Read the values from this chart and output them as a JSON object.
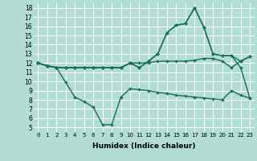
{
  "xlabel": "Humidex (Indice chaleur)",
  "xlim": [
    -0.5,
    23.5
  ],
  "ylim": [
    4.5,
    18.5
  ],
  "x_ticks": [
    0,
    1,
    2,
    3,
    4,
    5,
    6,
    7,
    8,
    9,
    10,
    11,
    12,
    13,
    14,
    15,
    16,
    17,
    18,
    19,
    20,
    21,
    22,
    23
  ],
  "y_ticks": [
    5,
    6,
    7,
    8,
    9,
    10,
    11,
    12,
    13,
    14,
    15,
    16,
    17,
    18
  ],
  "bg_color": "#b2ddd4",
  "grid_color": "#c8e8e0",
  "line_color": "#1a6b5a",
  "series": {
    "line1_x": [
      0,
      1,
      2,
      3,
      4,
      5,
      6,
      7,
      8,
      9,
      10,
      11,
      12,
      13,
      14,
      15,
      16,
      17,
      18,
      19,
      20,
      21,
      22,
      23
    ],
    "line1_y": [
      12,
      11.7,
      11.5,
      9.9,
      8.3,
      7.8,
      7.2,
      5.3,
      5.3,
      8.3,
      9.2,
      9.1,
      9.0,
      8.8,
      8.7,
      8.5,
      8.4,
      8.3,
      8.2,
      8.1,
      8.0,
      9.0,
      8.5,
      8.2
    ],
    "line2_x": [
      0,
      1,
      2,
      3,
      4,
      5,
      6,
      7,
      8,
      9,
      10,
      11,
      12,
      13,
      14,
      15,
      16,
      17,
      18,
      19,
      20,
      21,
      22,
      23
    ],
    "line2_y": [
      12,
      11.7,
      11.5,
      11.5,
      11.5,
      11.5,
      11.5,
      11.5,
      11.5,
      11.5,
      12.0,
      12.0,
      12.0,
      12.2,
      12.2,
      12.2,
      12.2,
      12.3,
      12.5,
      12.5,
      12.2,
      11.5,
      12.2,
      12.7
    ],
    "line3_x": [
      0,
      1,
      2,
      3,
      4,
      5,
      6,
      7,
      8,
      9,
      10,
      11,
      12,
      13,
      14,
      15,
      16,
      17,
      18,
      19,
      20,
      21,
      22,
      23
    ],
    "line3_y": [
      12,
      11.7,
      11.5,
      11.5,
      11.5,
      11.5,
      11.5,
      11.5,
      11.5,
      11.5,
      12.0,
      11.5,
      12.2,
      13.0,
      15.3,
      16.1,
      16.3,
      18.0,
      15.9,
      13.0,
      12.8,
      12.8,
      12.2,
      12.7
    ],
    "line4_x": [
      0,
      1,
      2,
      3,
      4,
      5,
      6,
      7,
      8,
      9,
      10,
      11,
      12,
      13,
      14,
      15,
      16,
      17,
      18,
      19,
      20,
      21,
      22,
      23
    ],
    "line4_y": [
      12,
      11.7,
      11.5,
      11.5,
      11.5,
      11.5,
      11.5,
      11.5,
      11.5,
      11.5,
      12.0,
      11.5,
      12.2,
      13.0,
      15.3,
      16.1,
      16.3,
      18.0,
      15.9,
      13.0,
      12.8,
      12.8,
      11.5,
      8.2
    ]
  },
  "marker": "+",
  "markersize": 3,
  "linewidth": 1.0,
  "tick_fontsize_x": 5,
  "tick_fontsize_y": 5.5,
  "xlabel_fontsize": 6.5
}
